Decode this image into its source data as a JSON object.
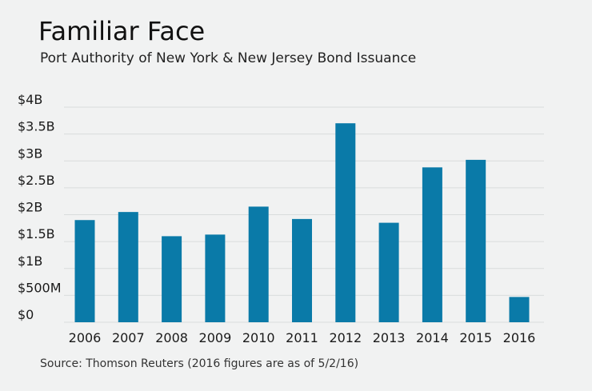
{
  "header": {
    "title": "Familiar Face",
    "subtitle": "Port Authority of New York & New Jersey Bond Issuance"
  },
  "footer": {
    "source": "Source: Thomson Reuters (2016 figures are as of 5/2/16)"
  },
  "colors": {
    "bar": "#0a7aa8",
    "grid": "#d9dcdc",
    "background": "#f1f2f2"
  },
  "chart_data": {
    "type": "bar",
    "categories": [
      "2006",
      "2007",
      "2008",
      "2009",
      "2010",
      "2011",
      "2012",
      "2013",
      "2014",
      "2015",
      "2016"
    ],
    "values": [
      1.9,
      2.05,
      1.6,
      1.63,
      2.15,
      1.92,
      3.7,
      1.85,
      2.88,
      3.02,
      0.47
    ],
    "value_unit": "billions of dollars",
    "ylim": [
      0,
      4
    ],
    "yticks": [
      0,
      0.5,
      1,
      1.5,
      2,
      2.5,
      3,
      3.5,
      4
    ],
    "ytick_labels": [
      "$0",
      "$500M",
      "$1B",
      "$1.5B",
      "$2B",
      "$2.5B",
      "$3B",
      "$3.5B",
      "$4B"
    ],
    "grid": true,
    "legend": "none"
  }
}
